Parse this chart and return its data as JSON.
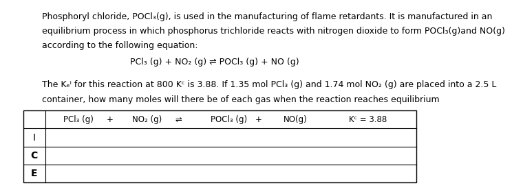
{
  "bg_color": "#ffffff",
  "text_color": "#000000",
  "paragraph1_line1": "Phosphoryl chloride, POCl₃(g), is used in the manufacturing of flame retardants. It is manufactured in an",
  "paragraph1_line2": "equilibrium process in which phosphorus trichloride reacts with nitrogen dioxide to form POCl₃(g)and NO(g)",
  "paragraph1_line3": "according to the following equation:",
  "equation_center": "PCl₃ (g) + NO₂ (g) ⇌ POCl₃ (g) + NO (g)",
  "paragraph2_line1": "The Kₑⁱ for this reaction at 800 Kᶜ is 3.88. If 1.35 mol PCl₃ (g) and 1.74 mol NO₂ (g) are placed into a 2.5 L",
  "paragraph2_line2": "container, how many moles will there be of each gas when the reaction reaches equilibrium",
  "table_header_cols": [
    "PCl₃ (g)",
    "+",
    "NO₂ (g)",
    "⇌",
    "POCl₃ (g)",
    "+",
    "NO(g)",
    "Kᶜ = 3.88"
  ],
  "table_rows": [
    "I",
    "C",
    "E"
  ],
  "font_size_text": 9,
  "font_size_table": 9
}
